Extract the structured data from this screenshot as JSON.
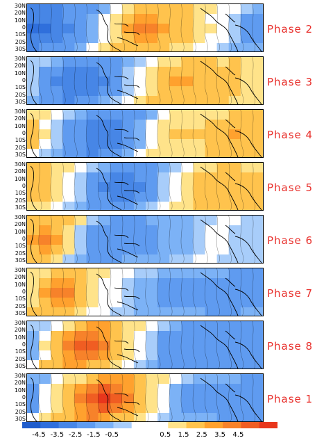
{
  "latitudes": [
    "30N",
    "20N",
    "10N",
    "0",
    "10S",
    "20S",
    "30S"
  ],
  "panels": [
    {
      "phase": "Phase 2",
      "pattern": [
        -3.5,
        -4.0,
        -3.5,
        -3.0,
        -2.5,
        -2.0,
        -1.0,
        0.5,
        2.0,
        3.0,
        3.5,
        3.0,
        2.5,
        2.0,
        1.5,
        1.0,
        0.0,
        -0.5,
        -1.5,
        -2.0
      ]
    },
    {
      "phase": "Phase 3",
      "pattern": [
        -0.5,
        -1.5,
        -2.5,
        -3.0,
        -3.5,
        -3.5,
        -3.0,
        -2.5,
        -1.5,
        -0.5,
        0.5,
        1.5,
        2.5,
        2.5,
        2.5,
        2.0,
        2.0,
        2.5,
        1.5,
        1.0
      ]
    },
    {
      "phase": "Phase 4",
      "pattern": [
        2.5,
        1.5,
        -0.5,
        -1.5,
        -2.0,
        -2.5,
        -3.5,
        -3.5,
        -3.0,
        -2.0,
        -1.0,
        0.5,
        1.5,
        1.5,
        1.5,
        1.5,
        2.0,
        2.5,
        2.5,
        2.0
      ]
    },
    {
      "phase": "Phase 5",
      "pattern": [
        2.5,
        2.0,
        1.5,
        0.5,
        -0.5,
        -1.5,
        -2.5,
        -3.0,
        -3.5,
        -3.0,
        -2.5,
        -1.5,
        -0.5,
        0.5,
        1.5,
        2.0,
        2.5,
        2.0,
        2.0,
        2.0
      ]
    },
    {
      "phase": "Phase 6",
      "pattern": [
        2.0,
        3.0,
        3.5,
        2.0,
        0.0,
        -1.5,
        -2.5,
        -2.5,
        -2.5,
        -2.0,
        -2.0,
        -1.5,
        -1.5,
        -1.5,
        -1.0,
        -0.5,
        0.0,
        -0.5,
        -1.0,
        -1.0
      ]
    },
    {
      "phase": "Phase 7",
      "pattern": [
        0.5,
        2.0,
        3.0,
        3.5,
        2.5,
        1.5,
        0.5,
        0.0,
        -0.5,
        -1.0,
        -1.5,
        -1.5,
        -2.0,
        -2.0,
        -2.0,
        -2.0,
        -2.0,
        -2.5,
        -2.5,
        -2.0
      ]
    },
    {
      "phase": "Phase 8",
      "pattern": [
        -2.0,
        -0.5,
        1.5,
        2.5,
        3.5,
        4.0,
        3.5,
        2.5,
        1.5,
        0.5,
        -0.5,
        -1.5,
        -2.0,
        -2.5,
        -2.5,
        -2.5,
        -2.5,
        -2.5,
        -2.5,
        -2.5
      ]
    },
    {
      "phase": "Phase 1",
      "pattern": [
        -2.5,
        -1.5,
        0.5,
        1.5,
        2.5,
        3.5,
        4.0,
        4.0,
        3.5,
        2.5,
        1.5,
        0.0,
        -1.0,
        -1.5,
        -2.0,
        -2.0,
        -2.0,
        -2.0,
        -2.5,
        -2.5
      ]
    }
  ],
  "colorbar": {
    "colors": [
      "#1f5ccc",
      "#2f6fdc",
      "#4786e6",
      "#5f9bf0",
      "#7cb2f6",
      "#a8cdfa",
      "#ffffff",
      "#ffffff",
      "#ffe38a",
      "#ffc34d",
      "#ffa12e",
      "#f7822a",
      "#f05d22",
      "#e8361c"
    ],
    "labels": [
      "-4.5",
      "-3.5",
      "-2.5",
      "-1.5",
      "-0.5",
      "0.5",
      "1.5",
      "2.5",
      "3.5",
      "4.5"
    ]
  }
}
